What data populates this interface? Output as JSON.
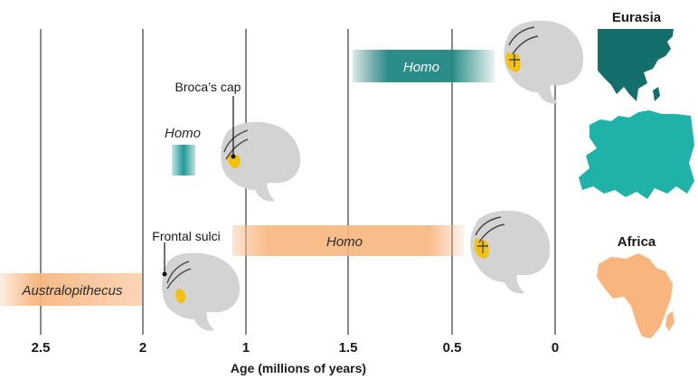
{
  "axis": {
    "title": "Age (millions of years)",
    "ticks": [
      "2.5",
      "2",
      "1",
      "1.5",
      "0.5",
      "0"
    ]
  },
  "bars": {
    "australopithecus": "Australopithecus",
    "homo_africa": "Homo",
    "homo_small": "Homo",
    "homo_eurasia": "Homo"
  },
  "callouts": {
    "broca": "Broca’s cap",
    "frontal": "Frontal sulci"
  },
  "regions": {
    "eurasia": "Eurasia",
    "africa": "Africa"
  },
  "colors": {
    "orange": "#f8b57e",
    "teal": "#1f9a94",
    "teal_dark": "#146e6c",
    "brain": "#d3d3d3",
    "gold": "#f4c20d"
  }
}
